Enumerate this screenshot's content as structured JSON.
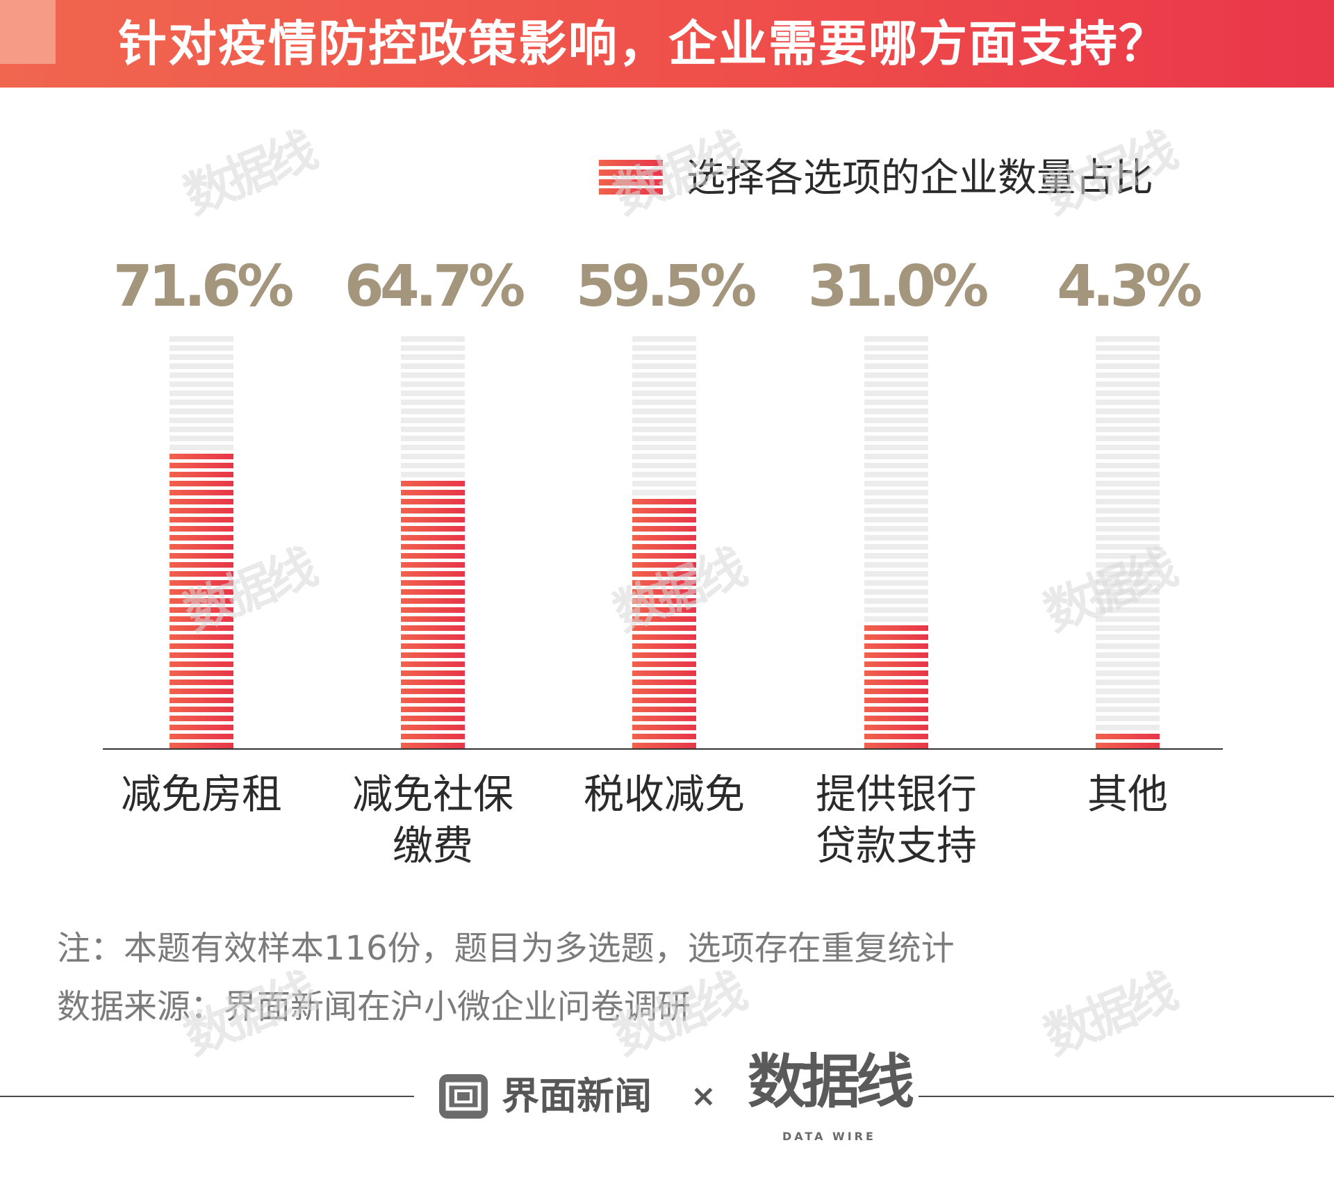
{
  "header": {
    "title": "针对疫情防控政策影响，企业需要哪方面支持？"
  },
  "legend": {
    "label": "选择各选项的企业数量占比"
  },
  "chart_data": {
    "type": "bar",
    "title": "针对疫情防控政策影响，企业需要哪方面支持？",
    "categories": [
      [
        "减免房租"
      ],
      [
        "减免社保",
        "缴费"
      ],
      [
        "税收减免"
      ],
      [
        "提供银行",
        "贷款支持"
      ],
      [
        "其他"
      ]
    ],
    "series": [
      {
        "name": "选择各选项的企业数量占比",
        "values": [
          71.6,
          64.7,
          59.5,
          31.0,
          4.3
        ]
      }
    ],
    "value_labels": [
      "71.6%",
      "64.7%",
      "59.5%",
      "31.0%",
      "4.3%"
    ],
    "ylim": [
      0,
      100
    ],
    "unit": "%",
    "grid": false,
    "legend_position": "top-right"
  },
  "notes": {
    "note1": "注：本题有效样本116份，题目为多选题，选项存在重复统计",
    "note2": "数据来源：界面新闻在沪小微企业问卷调研"
  },
  "footer": {
    "brand": "界面新闻",
    "times": "×",
    "partner": "数据线",
    "partner_sub": "DATA WIRE"
  },
  "watermark": {
    "text": "数据线"
  },
  "colors": {
    "bar_fill_start": "#f0614c",
    "bar_fill_end": "#e8364a",
    "bar_track": "#ececec",
    "value_label": "#a3967d",
    "axis": "#333333"
  }
}
